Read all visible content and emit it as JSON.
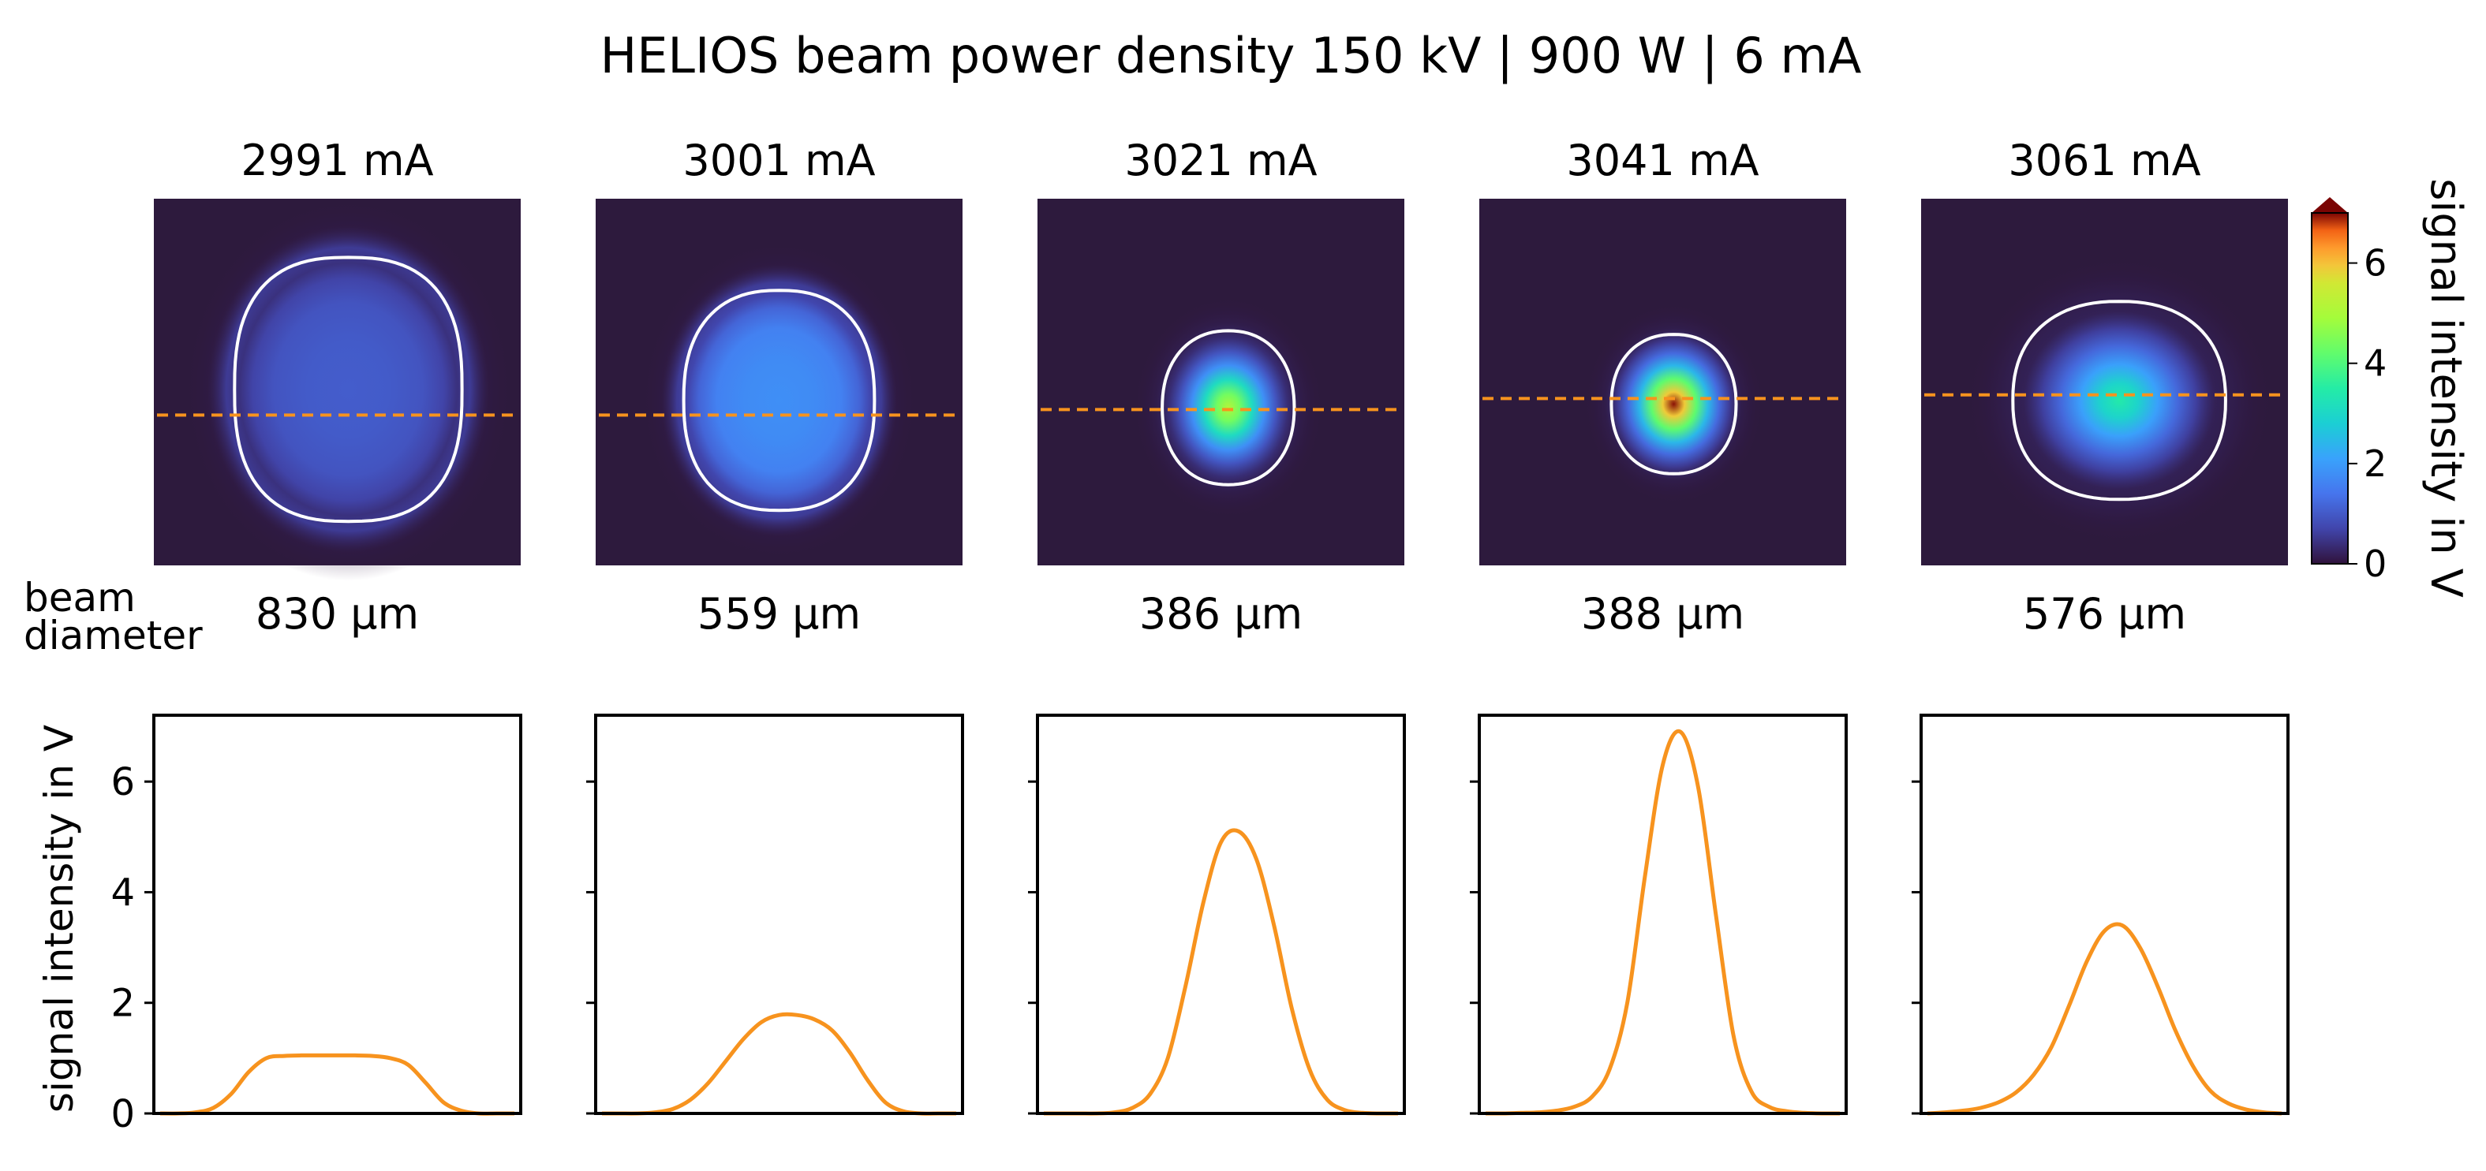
{
  "title": "HELIOS beam power density 150 kV | 900 W | 6 mA",
  "row_label": "beam\ndiameter",
  "colors": {
    "panel_background": "#2d1a3d",
    "line": "#f7931e",
    "contour": "#ffffff",
    "colormap": "turbo"
  },
  "colorbar": {
    "label": "signal intensity in V",
    "ticks": [
      0,
      2,
      4,
      6
    ],
    "range": [
      0,
      7
    ],
    "extend": "max"
  },
  "chart_data": [
    {
      "type": "heatmap",
      "panels": [
        {
          "title": "2991 mA",
          "diameter": "830 µm",
          "peak": 1.05,
          "shape": "flat-top"
        },
        {
          "title": "3001 mA",
          "diameter": "559 µm",
          "peak": 1.8,
          "shape": "flat-top"
        },
        {
          "title": "3021 mA",
          "diameter": "386 µm",
          "peak": 5.15,
          "shape": "gaussian"
        },
        {
          "title": "3041 mA",
          "diameter": "388 µm",
          "peak": 6.95,
          "shape": "gaussian"
        },
        {
          "title": "3061 mA",
          "diameter": "576 µm",
          "peak": 3.45,
          "shape": "gaussian"
        }
      ],
      "colorbar_label": "signal intensity in V",
      "zlim": [
        0,
        7
      ]
    },
    {
      "type": "line",
      "ylabel": "signal intensity in V",
      "yticks": [
        0,
        2,
        4,
        6
      ],
      "ylim": [
        0,
        7.2
      ],
      "x": [
        0,
        0.05,
        0.1,
        0.15,
        0.2,
        0.25,
        0.3,
        0.35,
        0.4,
        0.45,
        0.5,
        0.55,
        0.6,
        0.65,
        0.7,
        0.75,
        0.8,
        0.85,
        0.9,
        0.95,
        1
      ],
      "series": [
        {
          "values": [
            0,
            0,
            0.02,
            0.1,
            0.35,
            0.75,
            1.0,
            1.04,
            1.05,
            1.05,
            1.05,
            1.05,
            1.04,
            1.0,
            0.88,
            0.55,
            0.2,
            0.05,
            0,
            0,
            0
          ]
        },
        {
          "values": [
            0,
            0,
            0,
            0.02,
            0.08,
            0.25,
            0.55,
            0.95,
            1.35,
            1.65,
            1.78,
            1.78,
            1.7,
            1.5,
            1.1,
            0.6,
            0.2,
            0.04,
            0,
            0,
            0
          ]
        },
        {
          "values": [
            0,
            0,
            0,
            0,
            0.02,
            0.1,
            0.35,
            1.0,
            2.3,
            3.8,
            4.9,
            5.1,
            4.6,
            3.4,
            1.9,
            0.8,
            0.25,
            0.06,
            0.01,
            0,
            0
          ]
        },
        {
          "values": [
            0,
            0,
            0.01,
            0.02,
            0.05,
            0.12,
            0.3,
            0.8,
            2.0,
            4.3,
            6.3,
            6.9,
            5.9,
            3.6,
            1.4,
            0.4,
            0.12,
            0.04,
            0.01,
            0,
            0
          ]
        },
        {
          "values": [
            0,
            0.02,
            0.05,
            0.1,
            0.2,
            0.38,
            0.7,
            1.2,
            1.95,
            2.75,
            3.3,
            3.4,
            3.0,
            2.3,
            1.5,
            0.85,
            0.4,
            0.18,
            0.07,
            0.02,
            0
          ]
        }
      ]
    }
  ]
}
